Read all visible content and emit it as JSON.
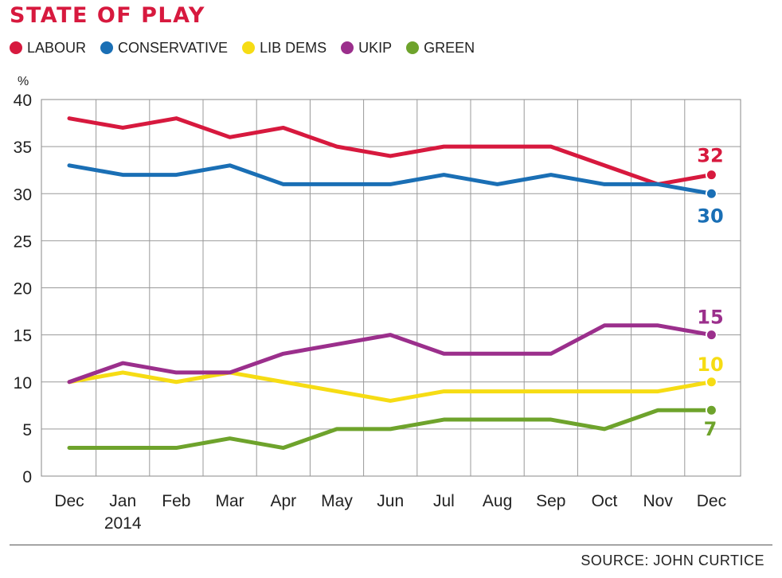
{
  "header": {
    "title": "STATE OF PLAY"
  },
  "legend": [
    {
      "name": "LABOUR",
      "color": "#d7193e"
    },
    {
      "name": "CONSERVATIVE",
      "color": "#1a6fb5"
    },
    {
      "name": "LIB DEMS",
      "color": "#f6dc14"
    },
    {
      "name": "UKIP",
      "color": "#9b2f8c"
    },
    {
      "name": "GREEN",
      "color": "#6ea32c"
    }
  ],
  "footer": {
    "source": "SOURCE: JOHN CURTICE"
  },
  "chart_data": {
    "type": "line",
    "title": "STATE OF PLAY",
    "ylabel": "%",
    "xlabel": "",
    "ylim": [
      0,
      40
    ],
    "yticks": [
      0,
      5,
      10,
      15,
      20,
      25,
      30,
      35,
      40
    ],
    "categories": [
      "Dec",
      "Jan",
      "Feb",
      "Mar",
      "Apr",
      "May",
      "Jun",
      "Jul",
      "Aug",
      "Sep",
      "Oct",
      "Nov",
      "Dec"
    ],
    "year_label": {
      "category_index": 1,
      "text": "2014"
    },
    "grid": true,
    "legend_position": "top-left",
    "series": [
      {
        "name": "LABOUR",
        "color": "#d7193e",
        "values": [
          38,
          37,
          38,
          36,
          37,
          35,
          34,
          35,
          35,
          35,
          33,
          31,
          32
        ],
        "end_label": "32"
      },
      {
        "name": "CONSERVATIVE",
        "color": "#1a6fb5",
        "values": [
          33,
          32,
          32,
          33,
          31,
          31,
          31,
          32,
          31,
          32,
          31,
          31,
          30
        ],
        "end_label": "30"
      },
      {
        "name": "LIB DEMS",
        "color": "#f6dc14",
        "values": [
          10,
          11,
          10,
          11,
          10,
          9,
          8,
          9,
          9,
          9,
          9,
          9,
          10
        ],
        "end_label": "10"
      },
      {
        "name": "UKIP",
        "color": "#9b2f8c",
        "values": [
          10,
          12,
          11,
          11,
          13,
          14,
          15,
          13,
          13,
          13,
          16,
          16,
          15
        ],
        "end_label": "15"
      },
      {
        "name": "GREEN",
        "color": "#6ea32c",
        "values": [
          3,
          3,
          3,
          4,
          3,
          5,
          5,
          6,
          6,
          6,
          5,
          7,
          7
        ],
        "end_label": "7"
      }
    ]
  }
}
